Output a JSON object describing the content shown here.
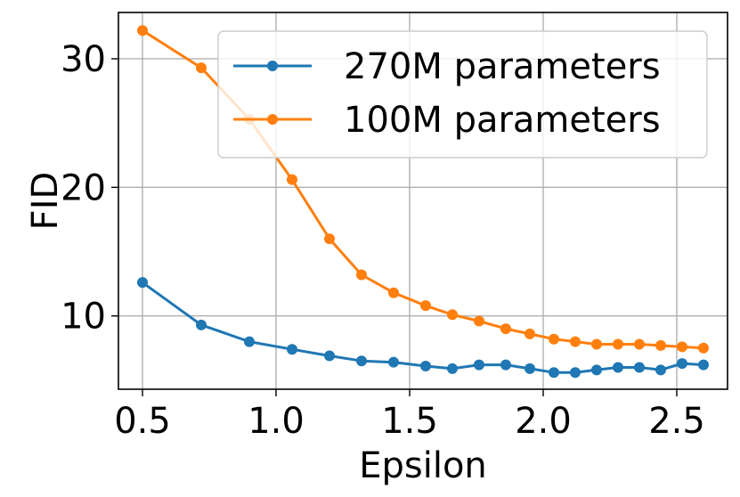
{
  "chart_data": {
    "type": "line",
    "xlabel": "Epsilon",
    "ylabel": "FID",
    "xlim": [
      0.41,
      2.69
    ],
    "ylim": [
      4.3,
      33.6
    ],
    "xticks": [
      0.5,
      1.0,
      1.5,
      2.0,
      2.5
    ],
    "xtick_labels": [
      "0.5",
      "1.0",
      "1.5",
      "2.0",
      "2.5"
    ],
    "yticks": [
      10,
      20,
      30
    ],
    "ytick_labels": [
      "10",
      "20",
      "30"
    ],
    "grid": true,
    "legend_position": "upper-right",
    "series": [
      {
        "name": "270M parameters",
        "color": "#1f77b4",
        "marker": "circle",
        "x": [
          0.5,
          0.72,
          0.9,
          1.06,
          1.2,
          1.32,
          1.44,
          1.56,
          1.66,
          1.76,
          1.86,
          1.95,
          2.04,
          2.12,
          2.2,
          2.28,
          2.36,
          2.44,
          2.52,
          2.6
        ],
        "y": [
          12.6,
          9.3,
          8.0,
          7.4,
          6.9,
          6.5,
          6.4,
          6.1,
          5.9,
          6.2,
          6.2,
          5.9,
          5.6,
          5.6,
          5.8,
          6.0,
          6.0,
          5.8,
          6.3,
          6.2
        ]
      },
      {
        "name": "100M parameters",
        "color": "#ff7f0e",
        "marker": "circle",
        "x": [
          0.5,
          0.72,
          0.9,
          1.06,
          1.2,
          1.32,
          1.44,
          1.56,
          1.66,
          1.76,
          1.86,
          1.95,
          2.04,
          2.12,
          2.2,
          2.28,
          2.36,
          2.44,
          2.52,
          2.6
        ],
        "y": [
          32.2,
          29.3,
          25.3,
          20.6,
          16.0,
          13.2,
          11.8,
          10.8,
          10.1,
          9.6,
          9.0,
          8.6,
          8.2,
          8.0,
          7.8,
          7.8,
          7.8,
          7.7,
          7.6,
          7.5
        ]
      }
    ]
  }
}
